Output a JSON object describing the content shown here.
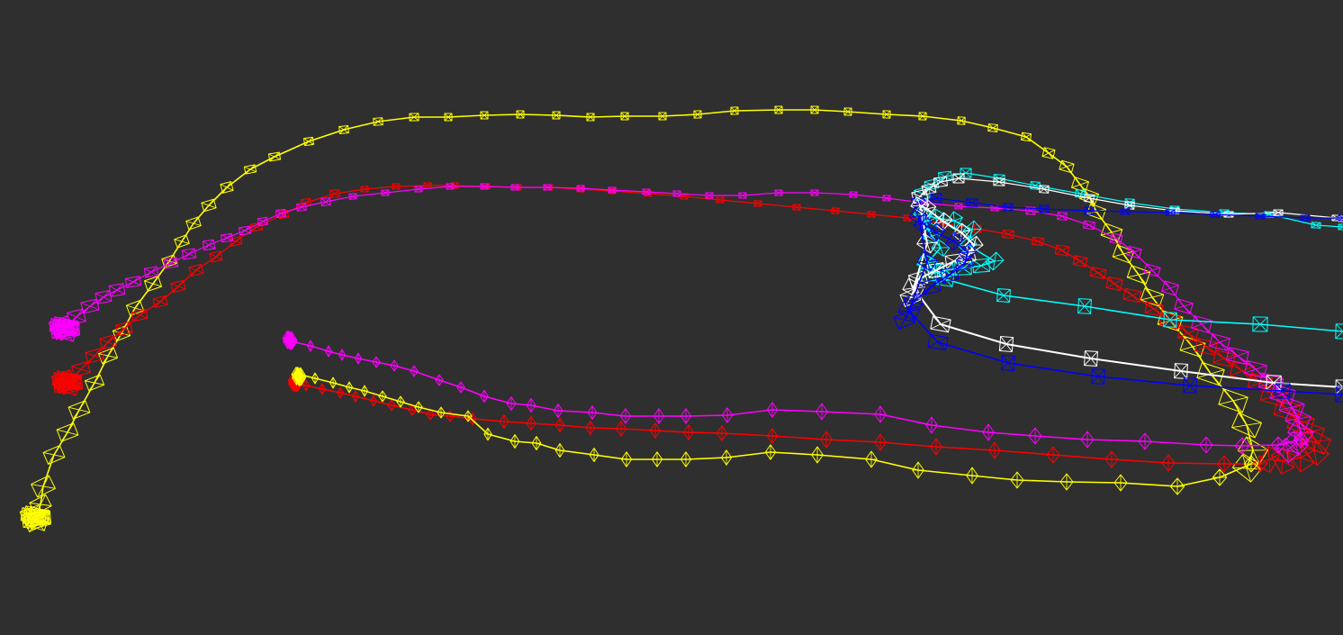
{
  "scene": {
    "background": "#2f2f2f",
    "trajectories": [
      {
        "id": "yellow-upper",
        "color": "#ffff00"
      },
      {
        "id": "red-upper",
        "color": "#ff0000"
      },
      {
        "id": "magenta-upper",
        "color": "#ff00ff"
      },
      {
        "id": "cyan-upper",
        "color": "#00ffff"
      },
      {
        "id": "white-upper",
        "color": "#ffffff"
      },
      {
        "id": "blue-upper",
        "color": "#0000ff"
      },
      {
        "id": "cyan-lower",
        "color": "#00ffff"
      },
      {
        "id": "white-lower",
        "color": "#ffffff"
      },
      {
        "id": "blue-lower",
        "color": "#0000ff"
      },
      {
        "id": "magenta-lower",
        "color": "#ff00ff"
      },
      {
        "id": "red-lower",
        "color": "#ff0000"
      },
      {
        "id": "yellow-lower",
        "color": "#ffff00"
      }
    ]
  }
}
